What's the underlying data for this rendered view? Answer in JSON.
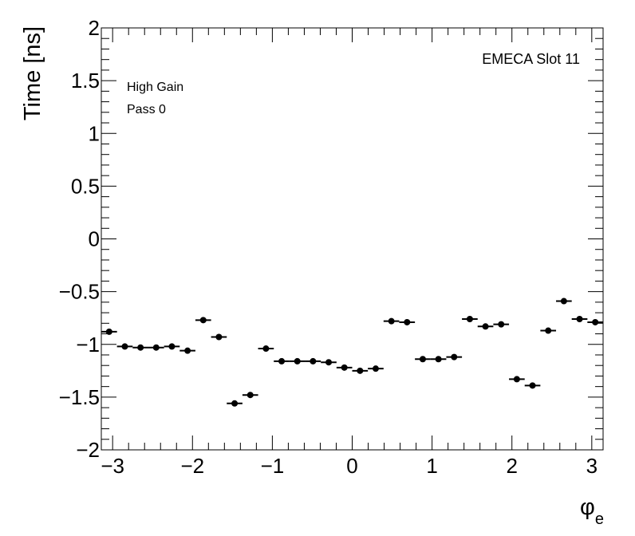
{
  "chart_data": {
    "type": "scatter",
    "xlabel": "φ",
    "xlabel_subscript": "e",
    "ylabel": "Time [ns]",
    "xlim": [
      -3.14159,
      3.14159
    ],
    "ylim": [
      -2,
      2
    ],
    "x_tick_labels": [
      "−3",
      "−2",
      "−1",
      "0",
      "1",
      "2",
      "3"
    ],
    "y_tick_labels": [
      "2",
      "1.5",
      "1",
      "0.5",
      "0",
      "−0.5",
      "−1",
      "−1.5",
      "−2"
    ],
    "annotations": {
      "top_right": "EMECA Slot 11",
      "line1": "High Gain",
      "line2": "Pass 0"
    },
    "grid": false,
    "marker_color": "#000000",
    "bin_count": 32,
    "series": [
      {
        "x": [
          -3.0434,
          -2.8471,
          -2.6507,
          -2.4544,
          -2.258,
          -2.0617,
          -1.8653,
          -1.669,
          -1.4726,
          -1.2763,
          -1.0799,
          -0.8836,
          -0.6872,
          -0.4909,
          -0.2945,
          -0.0982,
          0.0982,
          0.2945,
          0.4909,
          0.6872,
          0.8836,
          1.0799,
          1.2763,
          1.4726,
          1.669,
          1.8653,
          2.0617,
          2.258,
          2.4544,
          2.6507,
          2.8471,
          3.0434
        ],
        "values": [
          -0.88,
          -1.02,
          -1.03,
          -1.03,
          -1.02,
          -1.06,
          -0.77,
          -0.93,
          -1.56,
          -1.48,
          -1.04,
          -1.16,
          -1.16,
          -1.16,
          -1.17,
          -1.22,
          -1.25,
          -1.23,
          -0.78,
          -0.79,
          -1.14,
          -1.14,
          -1.12,
          -0.76,
          -0.83,
          -0.81,
          -1.33,
          -1.39,
          -0.87,
          -0.59,
          -0.76,
          -0.79
        ]
      }
    ]
  }
}
